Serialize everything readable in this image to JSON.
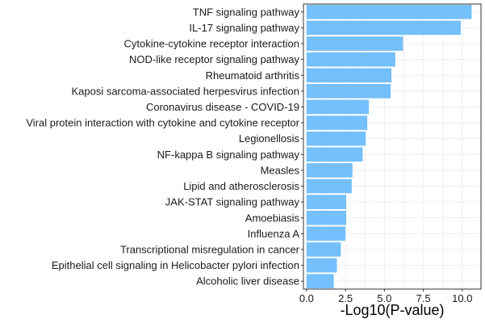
{
  "chart_data": {
    "type": "bar",
    "orientation": "horizontal",
    "categories": [
      "TNF signaling pathway",
      "IL-17 signaling pathway",
      "Cytokine-cytokine receptor interaction",
      "NOD-like receptor signaling pathway",
      "Rheumatoid arthritis",
      "Kaposi sarcoma-associated herpesvirus infection",
      "Coronavirus disease - COVID-19",
      "Viral protein interaction with cytokine and cytokine receptor",
      "Legionellosis",
      "NF-kappa B signaling pathway",
      "Measles",
      "Lipid and atherosclerosis",
      "JAK-STAT signaling pathway",
      "Amoebiasis",
      "Influenza A",
      "Transcriptional misregulation in cancer",
      "Epithelial cell signaling in Helicobacter pylori infection",
      "Alcoholic liver disease"
    ],
    "values": [
      10.6,
      9.9,
      6.2,
      5.7,
      5.45,
      5.4,
      4.0,
      3.9,
      3.8,
      3.6,
      2.95,
      2.9,
      2.55,
      2.55,
      2.5,
      2.2,
      1.95,
      1.75
    ],
    "title": "",
    "xlabel": "-Log10(P-value)",
    "ylabel": "",
    "xlim": [
      -0.2,
      11.2
    ],
    "xticks": [
      0,
      2.5,
      5,
      7.5,
      10
    ],
    "xtick_labels": [
      "0.0",
      "2.5",
      "5.0",
      "7.5",
      "10.0"
    ],
    "grid": true,
    "bar_color": "#74C0FC",
    "grid_color": "#EBEBEB",
    "panel_border_color": "#333333"
  }
}
